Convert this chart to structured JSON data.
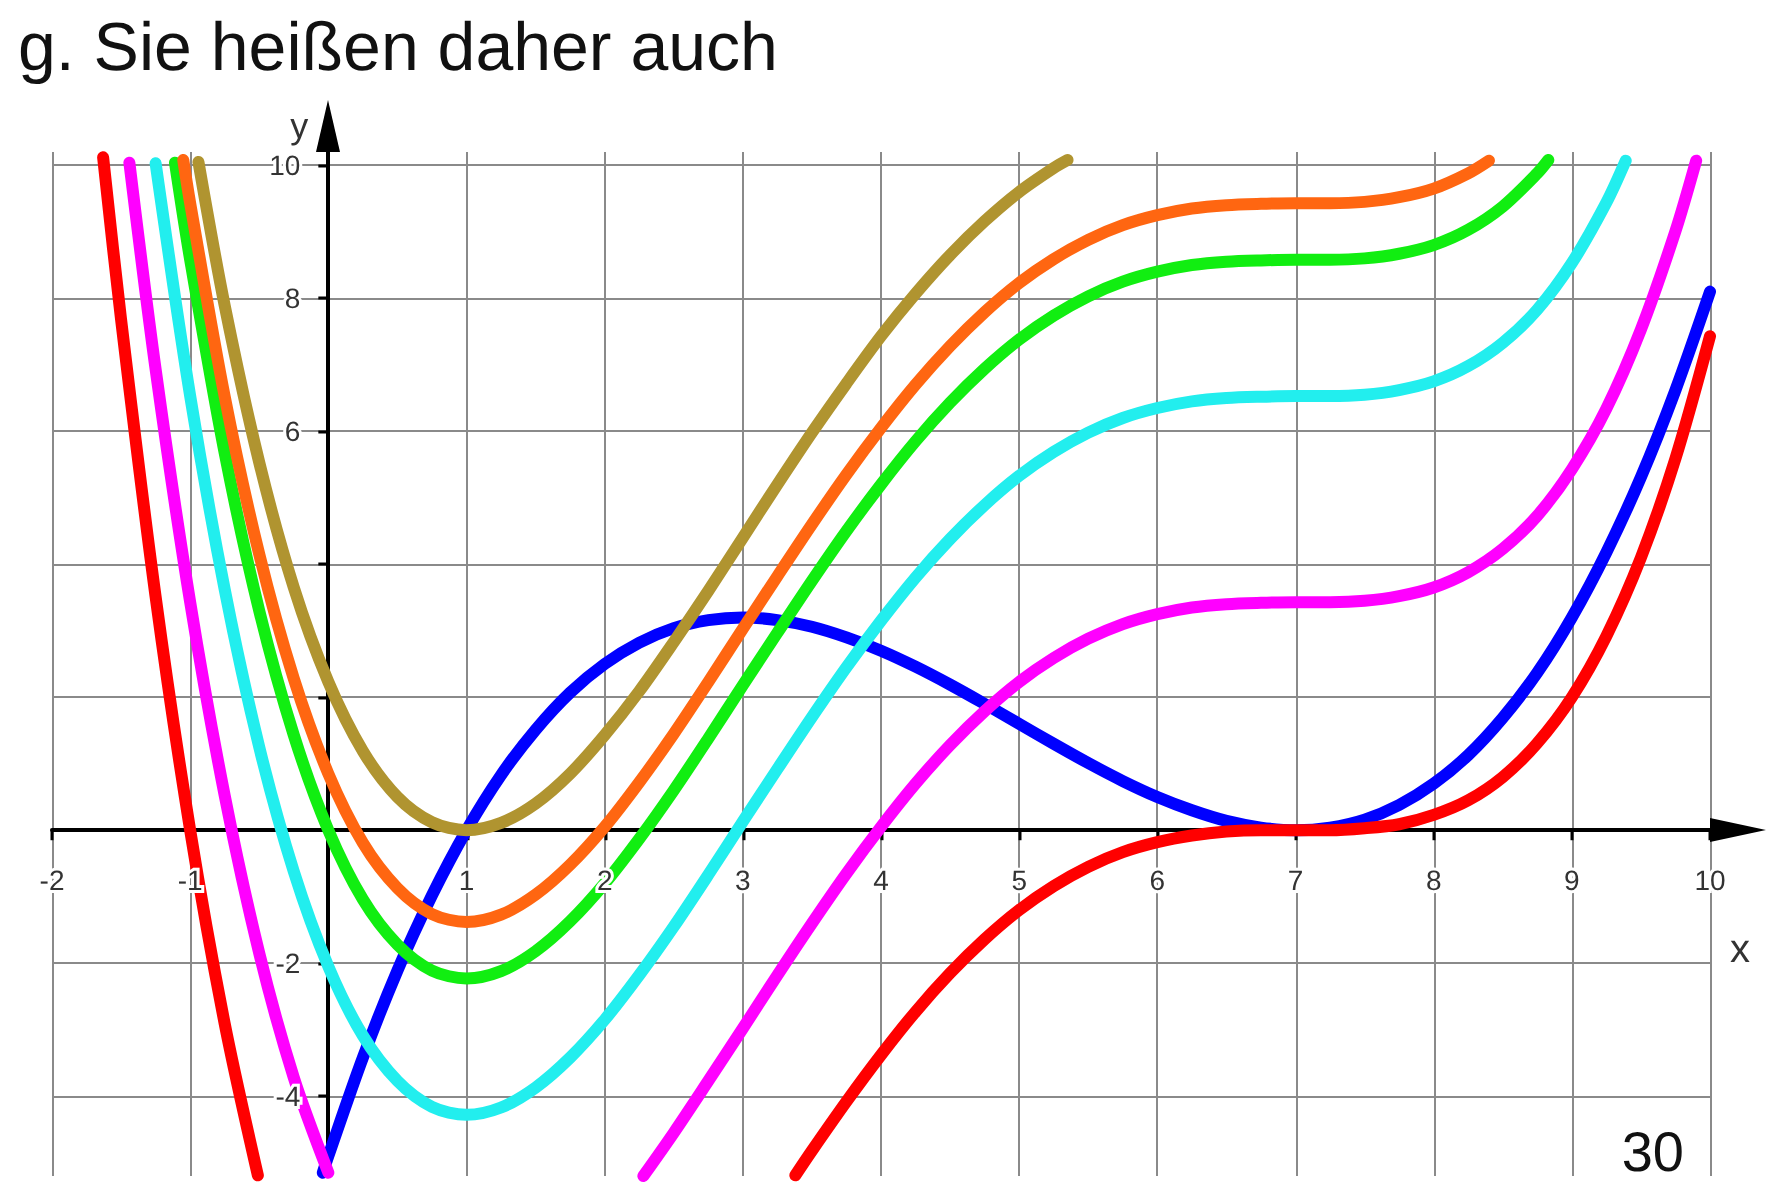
{
  "chart_data": {
    "type": "line",
    "title": "g. Sie heißen daher auch",
    "xlabel": "x",
    "ylabel": "y",
    "annotations": [
      "30"
    ],
    "xlim": [
      -2,
      10
    ],
    "ylim": [
      -5.2,
      10.2
    ],
    "xticks": [
      -2,
      -1,
      {
        "value": 0,
        "label": null
      },
      1,
      2,
      3,
      4,
      5,
      6,
      7,
      8,
      9,
      10
    ],
    "yticks": [
      -4,
      -2,
      {
        "value": 0,
        "label": null
      },
      {
        "value": 2,
        "label": null
      },
      {
        "value": 4,
        "label": null
      },
      6,
      8,
      10
    ],
    "grid": true,
    "marker": "none",
    "line_style": "solid",
    "series": [
      {
        "color": "#0000ff",
        "x": [
          -0.04,
          0,
          0.25,
          0.5,
          0.75,
          1,
          1.25,
          1.5,
          1.75,
          2,
          2.25,
          2.5,
          2.75,
          3,
          3.25,
          3.5,
          3.75,
          4,
          4.25,
          4.5,
          4.75,
          5,
          5.25,
          5.5,
          5.75,
          6,
          6.25,
          6.5,
          6.75,
          7,
          7.25,
          7.5,
          7.75,
          8,
          8.25,
          8.5,
          8.75,
          9,
          9.25,
          9.5,
          9.75,
          10
        ],
        "values": [
          -5.15,
          -4.9,
          -3.42,
          -2.11,
          -0.98,
          0,
          0.83,
          1.51,
          2.07,
          2.5,
          2.82,
          3.04,
          3.16,
          3.2,
          3.16,
          3.06,
          2.9,
          2.7,
          2.46,
          2.19,
          1.9,
          1.6,
          1.3,
          1.01,
          0.74,
          0.5,
          0.3,
          0.14,
          0.04,
          0,
          0.04,
          0.16,
          0.38,
          0.7,
          1.13,
          1.69,
          2.37,
          3.2,
          4.18,
          5.31,
          6.62,
          8.1
        ]
      },
      {
        "color": "#ff0000",
        "x": [
          -1.63,
          -1.5,
          -1.25,
          -1,
          -0.75,
          -0.51,
          1.5,
          3.38,
          3.5,
          3.75,
          4,
          4.25,
          4.5,
          4.75,
          5,
          5.25,
          5.5,
          5.75,
          6,
          6.25,
          6.5,
          6.75,
          7,
          7.25,
          7.5,
          7.75,
          8,
          8.25,
          8.5,
          8.75,
          9,
          9.25,
          9.5,
          9.75,
          10
        ],
        "values": [
          10.12,
          7.68,
          3.51,
          0,
          -2.91,
          -5.19,
          null,
          -5.19,
          -4.82,
          -4.08,
          -3.38,
          -2.73,
          -2.15,
          -1.64,
          -1.2,
          -0.84,
          -0.55,
          -0.33,
          -0.18,
          -0.08,
          -0.02,
          0,
          0,
          0,
          0.03,
          0.09,
          0.23,
          0.45,
          0.8,
          1.31,
          2,
          2.92,
          4.1,
          5.59,
          7.43
        ]
      },
      {
        "color": "#ff00ff",
        "x": [
          -1.44,
          -1.25,
          -1,
          -0.75,
          -0.5,
          -0.25,
          0,
          1,
          2.28,
          2.5,
          2.75,
          3,
          3.25,
          3.5,
          3.75,
          4,
          4.25,
          4.5,
          4.75,
          5,
          5.25,
          5.5,
          5.75,
          6,
          6.25,
          6.5,
          6.75,
          7,
          7.25,
          7.5,
          7.75,
          8,
          8.25,
          8.5,
          8.75,
          9,
          9.25,
          9.5,
          9.75,
          9.9
        ],
        "values": [
          10.04,
          6.93,
          3.43,
          0.52,
          -1.85,
          -3.72,
          -5.15,
          null,
          -5.2,
          -4.55,
          -3.77,
          -2.98,
          -2.18,
          -1.4,
          -0.65,
          0.05,
          0.7,
          1.28,
          1.79,
          2.23,
          2.59,
          2.88,
          3.1,
          3.25,
          3.35,
          3.4,
          3.42,
          3.43,
          3.43,
          3.45,
          3.52,
          3.65,
          3.88,
          4.23,
          4.73,
          5.43,
          6.34,
          7.53,
          9.01,
          10.07
        ]
      },
      {
        "color": "#22eeee",
        "x": [
          -1.25,
          -1,
          -0.75,
          -0.5,
          -0.25,
          0,
          0.25,
          0.5,
          0.75,
          1,
          1.25,
          1.5,
          1.75,
          2,
          2.25,
          2.5,
          2.75,
          3,
          3.25,
          3.5,
          3.75,
          4,
          4.25,
          4.5,
          4.75,
          5,
          5.25,
          5.5,
          5.75,
          6,
          6.25,
          6.5,
          6.75,
          7,
          7.25,
          7.5,
          7.75,
          8,
          8.25,
          8.5,
          8.75,
          9,
          9.25,
          9.39
        ],
        "values": [
          10.03,
          6.53,
          3.62,
          1.25,
          -0.62,
          -2.05,
          -3.09,
          -3.77,
          -4.16,
          -4.28,
          -4.17,
          -3.87,
          -3.42,
          -2.85,
          -2.18,
          -1.45,
          -0.67,
          0.13,
          0.92,
          1.7,
          2.45,
          3.15,
          3.8,
          4.38,
          4.89,
          5.33,
          5.69,
          5.98,
          6.2,
          6.35,
          6.45,
          6.5,
          6.52,
          6.53,
          6.53,
          6.55,
          6.62,
          6.75,
          6.98,
          7.33,
          7.83,
          8.53,
          9.44,
          10.07
        ]
      },
      {
        "color": "#11ee11",
        "x": [
          -1.11,
          -1,
          -0.75,
          -0.5,
          -0.25,
          0,
          0.25,
          0.5,
          0.75,
          1,
          1.25,
          1.5,
          1.75,
          2,
          2.25,
          2.5,
          2.75,
          3,
          3.25,
          3.5,
          3.75,
          4,
          4.25,
          4.5,
          4.75,
          5,
          5.25,
          5.5,
          5.75,
          6,
          6.25,
          6.5,
          6.75,
          7,
          7.25,
          7.5,
          7.75,
          8,
          8.25,
          8.5,
          8.75,
          8.83
        ],
        "values": [
          10.04,
          8.58,
          5.67,
          3.3,
          1.43,
          0,
          -1.04,
          -1.72,
          -2.11,
          -2.23,
          -2.12,
          -1.82,
          -1.37,
          -0.8,
          -0.13,
          0.6,
          1.38,
          2.18,
          2.97,
          3.75,
          4.5,
          5.2,
          5.85,
          6.43,
          6.94,
          7.38,
          7.74,
          8.03,
          8.25,
          8.4,
          8.5,
          8.55,
          8.57,
          8.58,
          8.58,
          8.6,
          8.67,
          8.8,
          9.03,
          9.38,
          9.88,
          10.08
        ]
      },
      {
        "color": "#ff6611",
        "x": [
          -1.05,
          -1,
          -0.75,
          -0.5,
          -0.25,
          0,
          0.25,
          0.5,
          0.75,
          1,
          1.25,
          1.5,
          1.75,
          2,
          2.25,
          2.5,
          2.75,
          3,
          3.25,
          3.5,
          3.75,
          4,
          4.25,
          4.5,
          4.75,
          5,
          5.25,
          5.5,
          5.75,
          6,
          6.25,
          6.5,
          6.75,
          7,
          7.25,
          7.5,
          7.75,
          8,
          8.25,
          8.4
        ],
        "values": [
          10.08,
          9.43,
          6.52,
          4.15,
          2.28,
          0.85,
          -0.19,
          -0.87,
          -1.26,
          -1.38,
          -1.27,
          -0.97,
          -0.52,
          0.05,
          0.72,
          1.45,
          2.23,
          3.03,
          3.82,
          4.6,
          5.35,
          6.05,
          6.7,
          7.28,
          7.79,
          8.23,
          8.59,
          8.88,
          9.1,
          9.25,
          9.35,
          9.4,
          9.42,
          9.43,
          9.43,
          9.45,
          9.52,
          9.65,
          9.88,
          10.07
        ]
      },
      {
        "color": "#b09430",
        "x": [
          -0.94,
          -0.75,
          -0.5,
          -0.25,
          0,
          0.25,
          0.5,
          0.75,
          1,
          1.25,
          1.5,
          1.75,
          2,
          2.25,
          2.5,
          2.75,
          3,
          3.25,
          3.5,
          3.75,
          4,
          4.25,
          4.5,
          4.75,
          5,
          5.25,
          5.35
        ],
        "values": [
          10.05,
          7.89,
          5.53,
          3.65,
          2.23,
          1.19,
          0.5,
          0.12,
          0,
          0.11,
          0.4,
          0.85,
          1.43,
          2.09,
          2.83,
          3.6,
          4.4,
          5.2,
          5.98,
          6.72,
          7.43,
          8.07,
          8.65,
          9.16,
          9.6,
          9.96,
          10.08
        ]
      }
    ]
  }
}
